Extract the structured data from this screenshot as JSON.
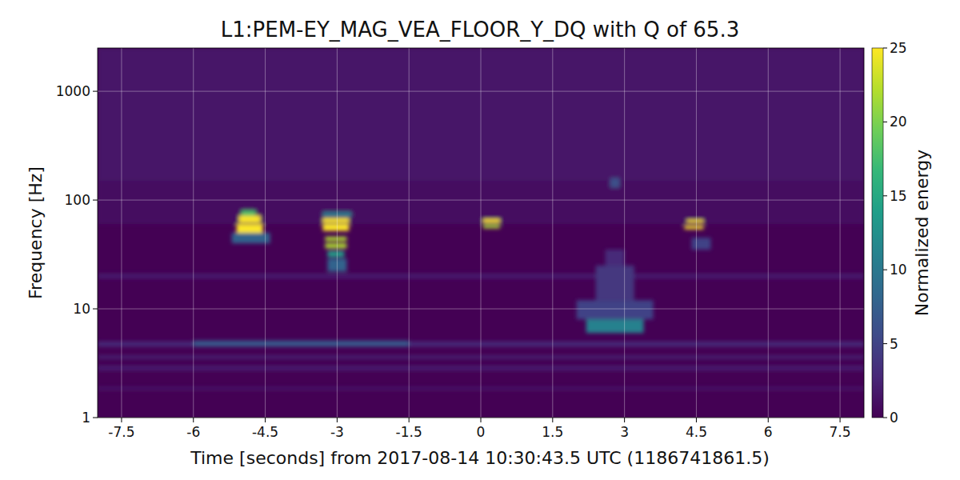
{
  "chart_data": {
    "type": "heatmap",
    "title": "L1:PEM-EY_MAG_VEA_FLOOR_Y_DQ with Q of 65.3",
    "x_label": "Time [seconds] from 2017-08-14 10:30:43.5 UTC (1186741861.5)",
    "y_label": "Frequency [Hz]",
    "colorbar_label": "Normalized energy",
    "log": "y",
    "grid": true,
    "xlim": [
      -8,
      8
    ],
    "ylim": [
      1,
      2500
    ],
    "xticks": [
      -7.5,
      -6,
      -4.5,
      -3,
      -1.5,
      0,
      1.5,
      3,
      4.5,
      6,
      7.5
    ],
    "yticks": [
      1,
      10,
      100,
      1000
    ],
    "clim": [
      0,
      25
    ],
    "cticks": [
      0,
      5,
      10,
      15,
      20,
      25
    ],
    "cells": [
      {
        "time": [
          -8,
          8
        ],
        "frequency": [
          150,
          2500
        ],
        "energy": 1.5
      },
      {
        "time": [
          -8,
          8
        ],
        "frequency": [
          60,
          150
        ],
        "energy": 1
      },
      {
        "time": [
          -8,
          8
        ],
        "frequency": [
          19,
          21
        ],
        "energy": 2
      },
      {
        "time": [
          -8,
          8
        ],
        "frequency": [
          4.5,
          5
        ],
        "energy": 3
      },
      {
        "time": [
          -8,
          8
        ],
        "frequency": [
          3.5,
          3.7
        ],
        "energy": 3
      },
      {
        "time": [
          -8,
          8
        ],
        "frequency": [
          2.7,
          3
        ],
        "energy": 2
      },
      {
        "time": [
          -8,
          8
        ],
        "frequency": [
          1.8,
          1.9
        ],
        "energy": 2
      },
      {
        "time": [
          -6,
          -1.5
        ],
        "frequency": [
          4.5,
          5.1
        ],
        "energy": 7
      },
      {
        "time": [
          -5.2,
          -4.4
        ],
        "frequency": [
          40,
          50
        ],
        "energy": 8
      },
      {
        "time": [
          -5.1,
          -4.55
        ],
        "frequency": [
          50,
          60
        ],
        "energy": 25
      },
      {
        "time": [
          -5.05,
          -4.6
        ],
        "frequency": [
          62,
          72
        ],
        "energy": 25
      },
      {
        "time": [
          -5.0,
          -4.7
        ],
        "frequency": [
          72,
          80
        ],
        "energy": 18
      },
      {
        "time": [
          -3.3,
          -2.7
        ],
        "frequency": [
          70,
          78
        ],
        "energy": 10
      },
      {
        "time": [
          -3.3,
          -2.75
        ],
        "frequency": [
          62,
          68
        ],
        "energy": 25
      },
      {
        "time": [
          -3.3,
          -2.75
        ],
        "frequency": [
          52,
          60
        ],
        "energy": 25
      },
      {
        "time": [
          -3.25,
          -2.8
        ],
        "frequency": [
          42,
          46
        ],
        "energy": 22
      },
      {
        "time": [
          -3.25,
          -2.8
        ],
        "frequency": [
          36,
          40
        ],
        "energy": 22
      },
      {
        "time": [
          -3.2,
          -2.85
        ],
        "frequency": [
          30,
          34
        ],
        "energy": 14
      },
      {
        "time": [
          -3.2,
          -2.8
        ],
        "frequency": [
          22,
          29
        ],
        "energy": 8
      },
      {
        "time": [
          0.05,
          0.4
        ],
        "frequency": [
          62,
          67
        ],
        "energy": 25
      },
      {
        "time": [
          0.05,
          0.4
        ],
        "frequency": [
          55,
          59
        ],
        "energy": 22
      },
      {
        "time": [
          2.0,
          3.6
        ],
        "frequency": [
          8,
          12
        ],
        "energy": 5
      },
      {
        "time": [
          2.2,
          3.4
        ],
        "frequency": [
          6,
          8
        ],
        "energy": 11
      },
      {
        "time": [
          2.4,
          3.2
        ],
        "frequency": [
          12,
          25
        ],
        "energy": 4
      },
      {
        "time": [
          2.6,
          3.0
        ],
        "frequency": [
          25,
          35
        ],
        "energy": 3
      },
      {
        "time": [
          2.7,
          2.9
        ],
        "frequency": [
          130,
          160
        ],
        "energy": 6
      },
      {
        "time": [
          4.4,
          4.8
        ],
        "frequency": [
          35,
          45
        ],
        "energy": 5
      },
      {
        "time": [
          4.25,
          4.65
        ],
        "frequency": [
          54,
          58
        ],
        "energy": 25
      },
      {
        "time": [
          4.3,
          4.65
        ],
        "frequency": [
          62,
          66
        ],
        "energy": 25
      }
    ]
  }
}
